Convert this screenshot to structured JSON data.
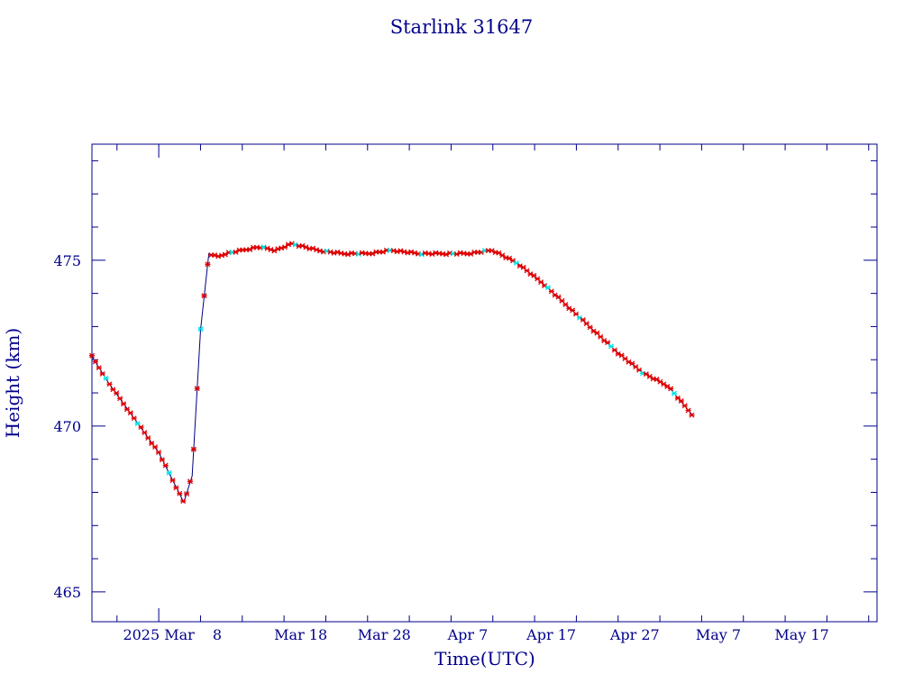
{
  "chart_data": {
    "type": "line",
    "title": "Starlink 31647",
    "xlabel": "Time(UTC)",
    "ylabel": "Height (km)",
    "ylim": [
      464.1,
      478.5
    ],
    "xlim": [
      "2025-02-21",
      "2025-05-26"
    ],
    "grid": false,
    "legend": "none",
    "x_ticks": [
      {
        "date": "2025-03-01",
        "label": "2025 Mar"
      },
      {
        "date": "2025-03-08",
        "label": "8"
      },
      {
        "date": "2025-03-18",
        "label": "Mar 18"
      },
      {
        "date": "2025-03-28",
        "label": "Mar 28"
      },
      {
        "date": "2025-04-07",
        "label": "Apr  7"
      },
      {
        "date": "2025-04-17",
        "label": "Apr 17"
      },
      {
        "date": "2025-04-27",
        "label": "Apr 27"
      },
      {
        "date": "2025-05-07",
        "label": "May  7"
      },
      {
        "date": "2025-05-17",
        "label": "May 17"
      }
    ],
    "y_ticks": [
      465,
      470,
      475
    ],
    "colors": {
      "axis": "#00008b",
      "line": "#000080",
      "marker_primary": "#e00000",
      "marker_secondary": "#00e5e5"
    },
    "series": [
      {
        "x": [
          "2025-02-21",
          "2025-02-23",
          "2025-02-25",
          "2025-02-27",
          "2025-03-01",
          "2025-03-03",
          "2025-03-04",
          "2025-03-05",
          "2025-03-06",
          "2025-03-07",
          "2025-03-08",
          "2025-03-09",
          "2025-03-11",
          "2025-03-13",
          "2025-03-15",
          "2025-03-17",
          "2025-03-20",
          "2025-03-23",
          "2025-03-26",
          "2025-03-29",
          "2025-04-01",
          "2025-04-04",
          "2025-04-07",
          "2025-04-10",
          "2025-04-13",
          "2025-04-16",
          "2025-04-19",
          "2025-04-22",
          "2025-04-25",
          "2025-04-28",
          "2025-05-01",
          "2025-05-02",
          "2025-05-04"
        ],
        "values": [
          472.1,
          471.3,
          470.6,
          469.9,
          469.2,
          468.2,
          467.7,
          468.5,
          472.9,
          475.2,
          475.1,
          475.2,
          475.3,
          475.4,
          475.3,
          475.5,
          475.3,
          475.2,
          475.2,
          475.3,
          475.2,
          475.2,
          475.2,
          475.3,
          474.9,
          474.3,
          473.6,
          472.9,
          472.2,
          471.6,
          471.2,
          470.9,
          470.3
        ]
      }
    ]
  }
}
